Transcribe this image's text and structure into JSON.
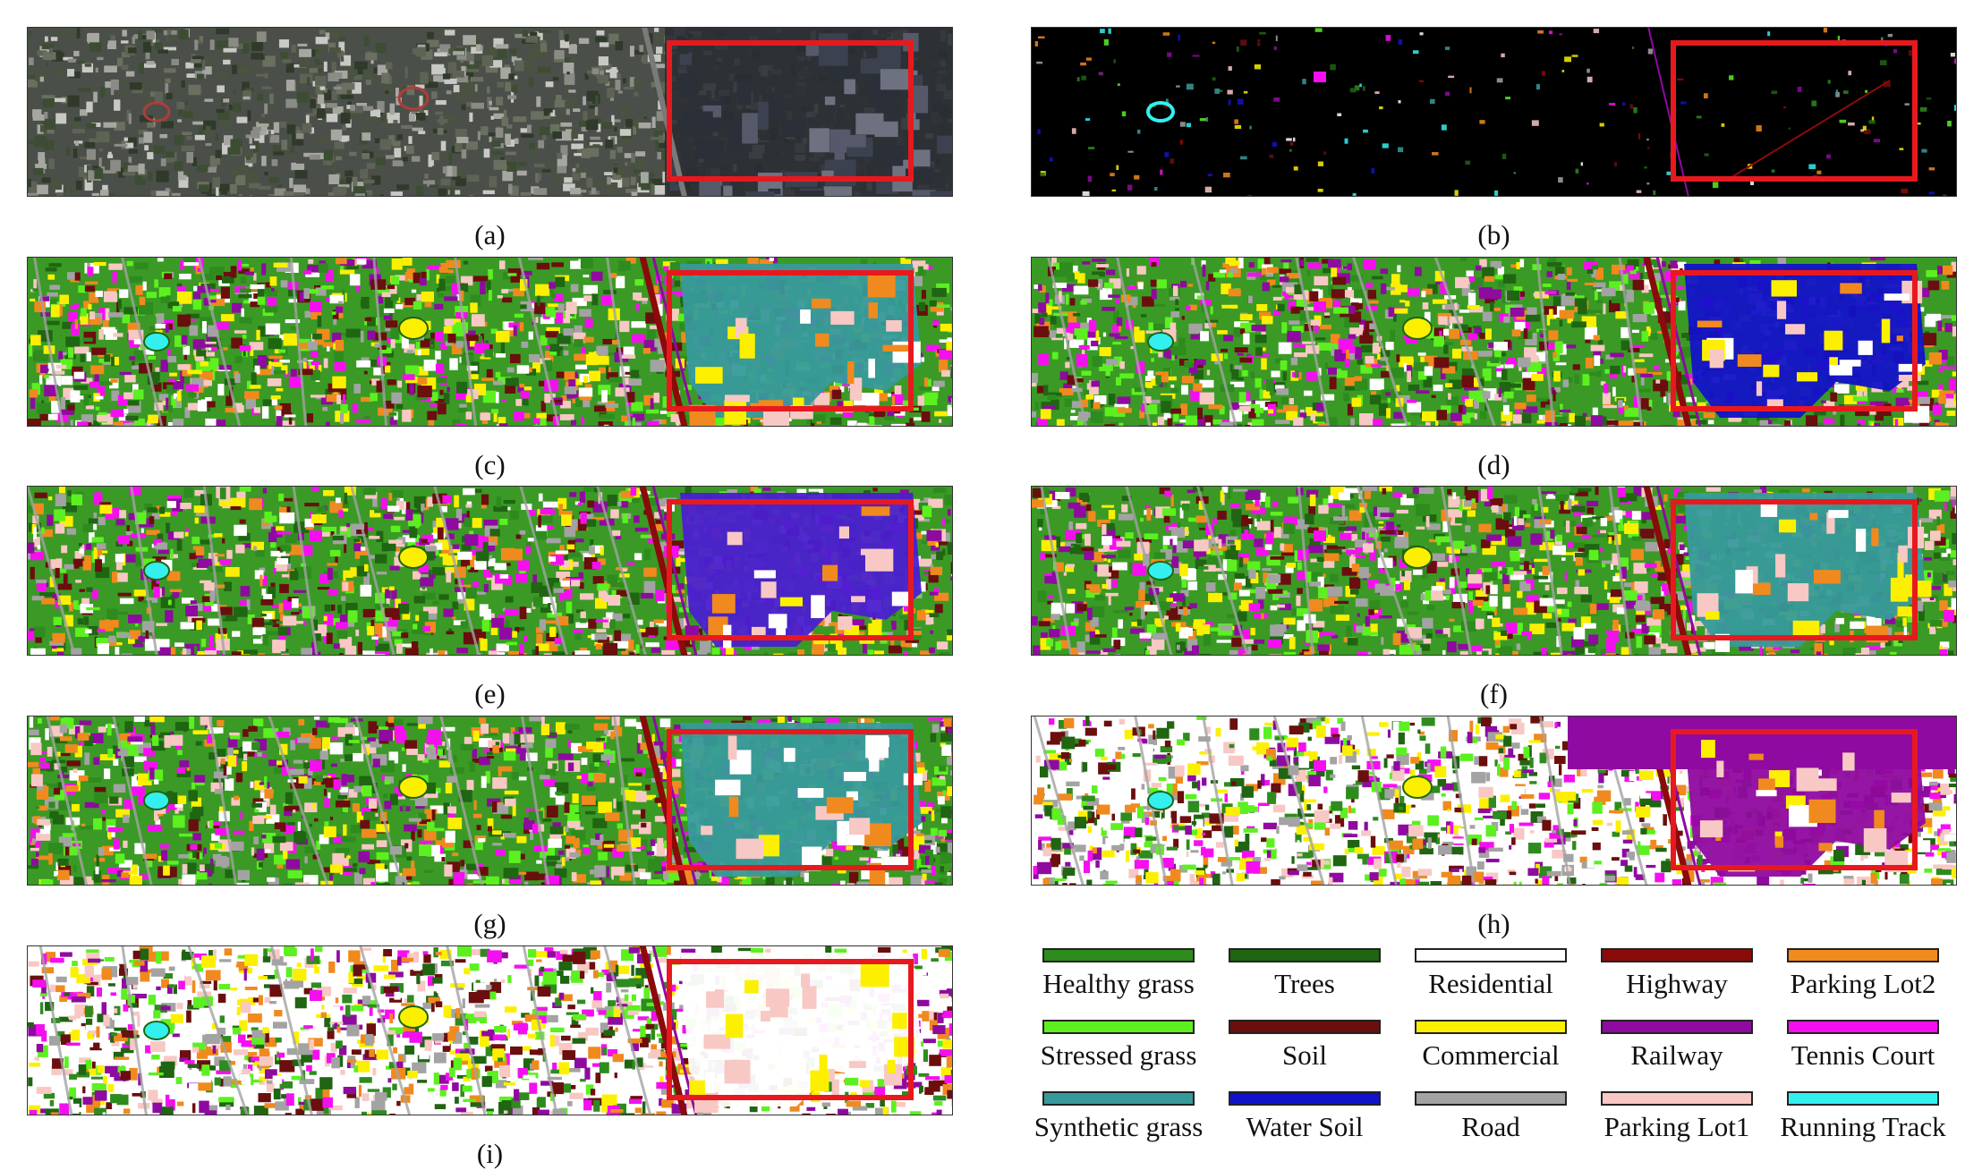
{
  "panels": [
    {
      "id": "a",
      "caption": "(a)",
      "style": "rgb"
    },
    {
      "id": "b",
      "caption": "(b)",
      "style": "gt"
    },
    {
      "id": "c",
      "caption": "(c)",
      "style": "map",
      "region_class": "synthetic_grass"
    },
    {
      "id": "d",
      "caption": "(d)",
      "style": "map",
      "region_class": "water_soil"
    },
    {
      "id": "e",
      "caption": "(e)",
      "style": "map",
      "region_class": "water_soil_mixed"
    },
    {
      "id": "f",
      "caption": "(f)",
      "style": "map",
      "region_class": "synthetic_grass"
    },
    {
      "id": "g",
      "caption": "(g)",
      "style": "map",
      "region_class": "synthetic_grass"
    },
    {
      "id": "h",
      "caption": "(h)",
      "style": "map",
      "region_class": "railway"
    },
    {
      "id": "i",
      "caption": "(i)",
      "style": "map",
      "region_class": "residential"
    }
  ],
  "legend": [
    {
      "label": "Healthy grass",
      "color": "#2e8b1e"
    },
    {
      "label": "Trees",
      "color": "#1f6512"
    },
    {
      "label": "Residential",
      "color": "#ffffff"
    },
    {
      "label": "Highway",
      "color": "#8b0a0a"
    },
    {
      "label": "Parking Lot2",
      "color": "#f08a1e"
    },
    {
      "label": "Stressed grass",
      "color": "#5cf020"
    },
    {
      "label": "Soil",
      "color": "#6b0e0e"
    },
    {
      "label": "Commercial",
      "color": "#fcf000"
    },
    {
      "label": "Railway",
      "color": "#8f0aa0"
    },
    {
      "label": "Tennis Court",
      "color": "#f50ff0"
    },
    {
      "label": "Synthetic grass",
      "color": "#379a9a"
    },
    {
      "label": "Water Soil",
      "color": "#1212c8"
    },
    {
      "label": "Road",
      "color": "#a3a3a3"
    },
    {
      "label": "Parking Lot1",
      "color": "#f8c8c4"
    },
    {
      "label": "Running Track",
      "color": "#33f0ee"
    }
  ],
  "highlight_color": "#e8191e"
}
